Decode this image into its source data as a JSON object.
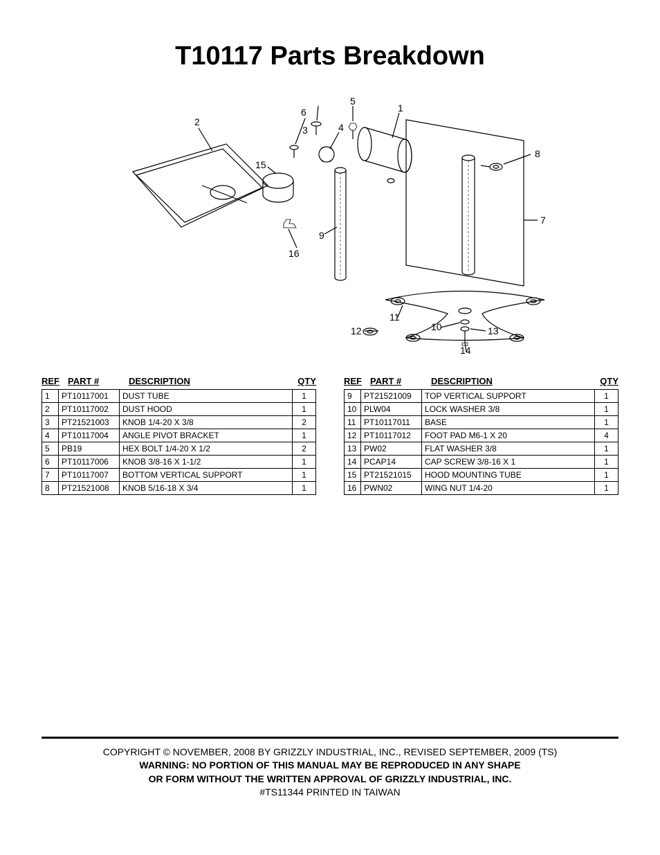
{
  "title": "T10117 Parts Breakdown",
  "diagram": {
    "labels": [
      "1",
      "2",
      "3",
      "4",
      "5",
      "6",
      "7",
      "8",
      "9",
      "10",
      "11",
      "12",
      "13",
      "14",
      "15",
      "16"
    ],
    "label_font_size": 14,
    "stroke_color": "#000000",
    "stroke_width": 1.2,
    "background_color": "#ffffff"
  },
  "headers": {
    "ref": "REF",
    "part": "PART #",
    "desc": "DESCRIPTION",
    "qty": "QTY"
  },
  "left_table": [
    {
      "ref": "1",
      "part": "PT10117001",
      "desc": "DUST TUBE",
      "qty": "1"
    },
    {
      "ref": "2",
      "part": "PT10117002",
      "desc": "DUST HOOD",
      "qty": "1"
    },
    {
      "ref": "3",
      "part": "PT21521003",
      "desc": "KNOB 1/4-20 X 3/8",
      "qty": "2"
    },
    {
      "ref": "4",
      "part": "PT10117004",
      "desc": "ANGLE PIVOT BRACKET",
      "qty": "1"
    },
    {
      "ref": "5",
      "part": "PB19",
      "desc": "HEX BOLT 1/4-20 X 1/2",
      "qty": "2"
    },
    {
      "ref": "6",
      "part": "PT10117006",
      "desc": "KNOB 3/8-16 X 1-1/2",
      "qty": "1"
    },
    {
      "ref": "7",
      "part": "PT10117007",
      "desc": "BOTTOM VERTICAL SUPPORT",
      "qty": "1"
    },
    {
      "ref": "8",
      "part": "PT21521008",
      "desc": "KNOB 5/16-18 X 3/4",
      "qty": "1"
    }
  ],
  "right_table": [
    {
      "ref": "9",
      "part": "PT21521009",
      "desc": "TOP VERTICAL SUPPORT",
      "qty": "1"
    },
    {
      "ref": "10",
      "part": "PLW04",
      "desc": "LOCK WASHER 3/8",
      "qty": "1"
    },
    {
      "ref": "11",
      "part": "PT10117011",
      "desc": "BASE",
      "qty": "1"
    },
    {
      "ref": "12",
      "part": "PT10117012",
      "desc": "FOOT PAD M6-1 X 20",
      "qty": "4"
    },
    {
      "ref": "13",
      "part": "PW02",
      "desc": "FLAT WASHER 3/8",
      "qty": "1"
    },
    {
      "ref": "14",
      "part": "PCAP14",
      "desc": "CAP SCREW 3/8-16 X 1",
      "qty": "1"
    },
    {
      "ref": "15",
      "part": "PT21521015",
      "desc": "HOOD MOUNTING TUBE",
      "qty": "1"
    },
    {
      "ref": "16",
      "part": "PWN02",
      "desc": "WING NUT 1/4-20",
      "qty": "1"
    }
  ],
  "footer": {
    "line1": "COPYRIGHT © NOVEMBER, 2008 BY GRIZZLY INDUSTRIAL, INC., REVISED SEPTEMBER, 2009 (TS)",
    "line2": "WARNING: NO PORTION OF THIS MANUAL MAY BE REPRODUCED IN ANY SHAPE",
    "line3": "OR FORM WITHOUT THE WRITTEN APPROVAL OF GRIZZLY INDUSTRIAL, INC.",
    "line4": "#TS11344  PRINTED IN TAIWAN"
  }
}
